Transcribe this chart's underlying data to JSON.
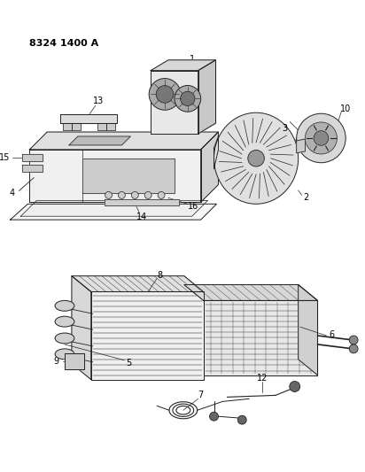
{
  "title": "8324 1400 A",
  "bg_color": "#ffffff",
  "lc": "#222222",
  "lw": 0.7,
  "fig_width": 4.12,
  "fig_height": 5.33,
  "dpi": 100
}
